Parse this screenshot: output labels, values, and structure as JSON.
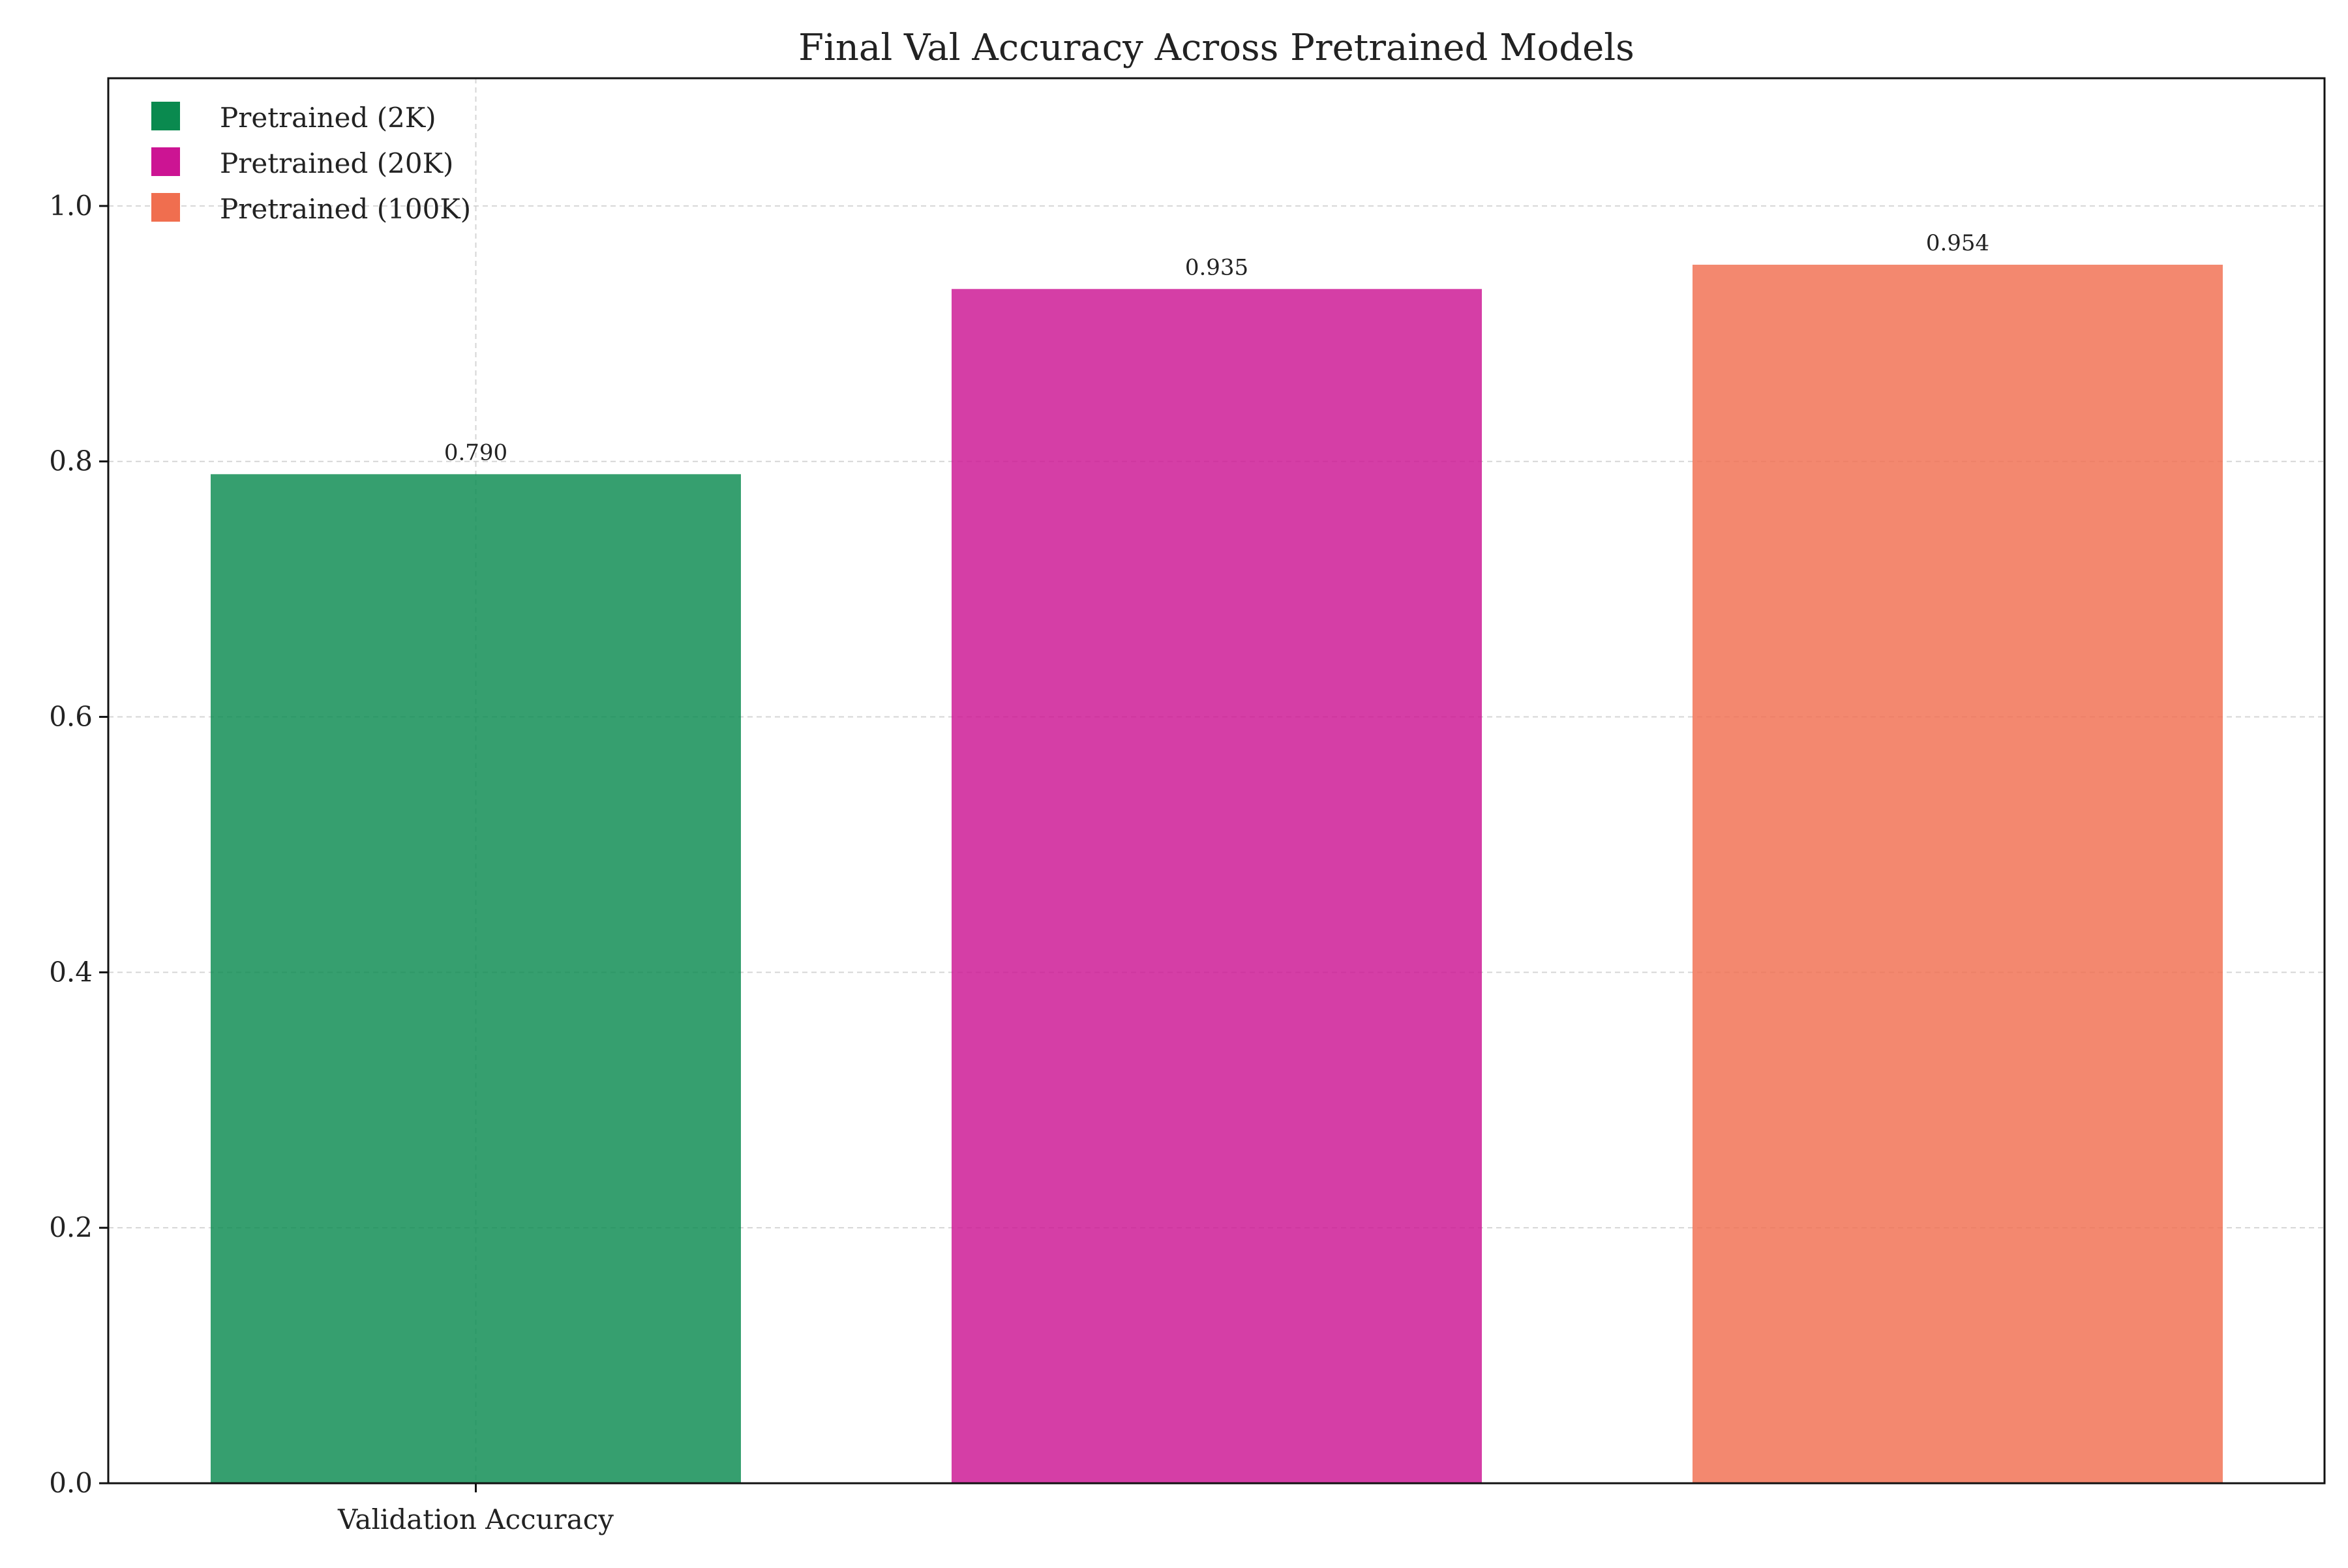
{
  "chart_data": {
    "type": "bar",
    "title": "Final Val Accuracy Across Pretrained Models",
    "xlabel": "",
    "ylabel": "",
    "categories": [
      "Validation Accuracy"
    ],
    "ylim": [
      0,
      1.1
    ],
    "yticks": [
      0.0,
      0.2,
      0.4,
      0.6,
      0.8,
      1.0
    ],
    "ytick_labels": [
      "0.0",
      "0.2",
      "0.4",
      "0.6",
      "0.8",
      "1.0"
    ],
    "grid": true,
    "legend_position": "top-left",
    "series": [
      {
        "name": "Pretrained (2K)",
        "values": [
          0.79
        ],
        "label": "0.790",
        "color": "#0a8a4f"
      },
      {
        "name": "Pretrained (20K)",
        "values": [
          0.935
        ],
        "label": "0.935",
        "color": "#cc1493"
      },
      {
        "name": "Pretrained (100K)",
        "values": [
          0.954
        ],
        "label": "0.954",
        "color": "#f06e4f"
      }
    ]
  }
}
